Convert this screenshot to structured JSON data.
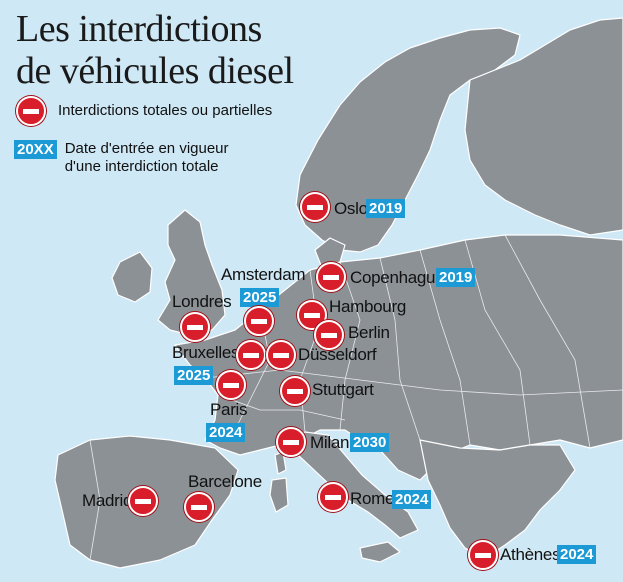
{
  "title": {
    "line1": "Les interdictions",
    "line2": "de véhicules diesel"
  },
  "legend": {
    "ban_label": "Interdictions totales ou partielles",
    "year_badge": "20XX",
    "year_label_1": "Date d'entrée en vigueur",
    "year_label_2": "d'une interdiction totale"
  },
  "colors": {
    "sea": "#cfe8f5",
    "land": "#8c9196",
    "ban": "#d81e2a",
    "year": "#1c9ad6"
  },
  "cities": [
    {
      "name": "Oslo",
      "year": "2019"
    },
    {
      "name": "Copenhague",
      "year": "2019"
    },
    {
      "name": "Amsterdam",
      "year": "2025"
    },
    {
      "name": "Londres",
      "year": ""
    },
    {
      "name": "Hambourg",
      "year": ""
    },
    {
      "name": "Berlin",
      "year": ""
    },
    {
      "name": "Bruxelles",
      "year": "2025"
    },
    {
      "name": "Düsseldorf",
      "year": ""
    },
    {
      "name": "Paris",
      "year": "2024"
    },
    {
      "name": "Stuttgart",
      "year": ""
    },
    {
      "name": "Milan",
      "year": "2030"
    },
    {
      "name": "Barcelone",
      "year": ""
    },
    {
      "name": "Madrid",
      "year": ""
    },
    {
      "name": "Rome",
      "year": "2024"
    },
    {
      "name": "Athènes",
      "year": "2024"
    }
  ]
}
